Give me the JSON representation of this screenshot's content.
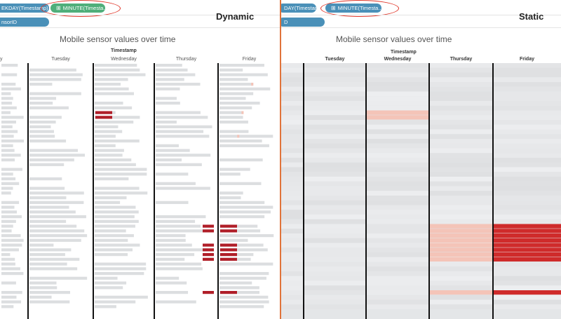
{
  "colors": {
    "gray_bar": "#dcdee0",
    "gray_bg": "#e4e6e8",
    "light_red": "#f4c4b8",
    "red": "#cf2b2b",
    "dark_red": "#b01e28",
    "pill_blue": "#4a90b8",
    "pill_green": "#4fae7a",
    "annotation_ring": "#e0372a",
    "divider": "#e0733a"
  },
  "left_panel": {
    "mode_label": "Dynamic",
    "shelf": {
      "pills": [
        {
          "text": "EKDAY(Timestamp)",
          "color": "blue",
          "icon": ""
        },
        {
          "text": "MINUTE(Timesta...",
          "color": "green",
          "icon": "plus-box-icon"
        },
        {
          "text": "nsorID",
          "color": "blue",
          "icon": ""
        }
      ]
    }
  },
  "right_panel": {
    "mode_label": "Static",
    "shelf": {
      "pills": [
        {
          "text": "DAY(Timestamp)",
          "color": "blue",
          "icon": ""
        },
        {
          "text": "MINUTE(Timesta...",
          "color": "blue",
          "icon": "plus-box-icon"
        },
        {
          "text": "D",
          "color": "blue",
          "icon": ""
        }
      ]
    }
  },
  "chart_data": [
    {
      "type": "heatmap",
      "variant": "dynamic",
      "title": "Mobile sensor values over time",
      "x_header": "Timestamp",
      "categories": [
        "y",
        "Tuesday",
        "Wednesday",
        "Thursday",
        "Friday"
      ],
      "rows": 52,
      "color_scale": "gray (no/low value) to red (high value)",
      "highlights": [
        {
          "day": "Thursday",
          "rows": [
            34,
            35,
            38,
            39,
            40,
            41,
            48
          ],
          "intensity": "red"
        },
        {
          "day": "Friday",
          "rows": [
            34,
            35,
            38,
            39,
            40,
            41,
            48
          ],
          "intensity": "red"
        },
        {
          "day": "Wednesday",
          "rows": [
            10,
            11
          ],
          "intensity": "red"
        },
        {
          "day": "Friday",
          "rows": [
            4,
            10,
            15
          ],
          "intensity": "light-red"
        }
      ]
    },
    {
      "type": "heatmap",
      "variant": "static",
      "title": "Mobile sensor values over time",
      "x_header": "Timestamp",
      "categories": [
        "",
        "Tuesday",
        "Wednesday",
        "Thursday",
        "Friday"
      ],
      "rows": 52,
      "color_scale": "gray (no/low value) to red (high value)",
      "highlights": [
        {
          "day": "Thursday",
          "rows": [
            34,
            35,
            36,
            37,
            38,
            39,
            40,
            41
          ],
          "intensity": "light-red"
        },
        {
          "day": "Friday",
          "rows": [
            34,
            35,
            36,
            37,
            38,
            39,
            40,
            41
          ],
          "intensity": "red"
        },
        {
          "day": "Thursday",
          "rows": [
            48
          ],
          "intensity": "light-red"
        },
        {
          "day": "Friday",
          "rows": [
            48
          ],
          "intensity": "red"
        },
        {
          "day": "Wednesday",
          "rows": [
            10,
            11
          ],
          "intensity": "light-red"
        }
      ]
    }
  ]
}
